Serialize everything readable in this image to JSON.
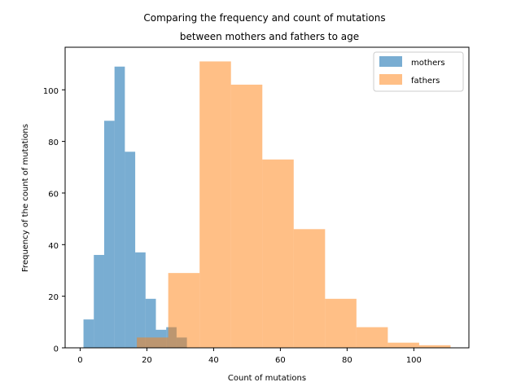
{
  "chart_data": {
    "type": "histogram",
    "title_lines": [
      "Comparing the frequency and count of mutations",
      "between mothers and fathers to age"
    ],
    "xlabel": "Count of mutations",
    "ylabel": "Frequency of the count of mutations",
    "xlim": [
      -4.5,
      116.5
    ],
    "ylim": [
      0,
      116.5
    ],
    "xticks": [
      0,
      20,
      40,
      60,
      80,
      100
    ],
    "yticks": [
      0,
      20,
      40,
      60,
      80,
      100
    ],
    "legend_position": "top-right",
    "grid": false,
    "series": [
      {
        "name": "mothers",
        "color": "#1f77b4",
        "alpha": 0.6,
        "bins": [
          {
            "x0": 1.0,
            "x1": 4.1,
            "count": 11
          },
          {
            "x0": 4.1,
            "x1": 7.2,
            "count": 36
          },
          {
            "x0": 7.2,
            "x1": 10.3,
            "count": 88
          },
          {
            "x0": 10.3,
            "x1": 13.4,
            "count": 109
          },
          {
            "x0": 13.4,
            "x1": 16.5,
            "count": 76
          },
          {
            "x0": 16.5,
            "x1": 19.6,
            "count": 37
          },
          {
            "x0": 19.6,
            "x1": 22.7,
            "count": 19
          },
          {
            "x0": 22.7,
            "x1": 25.8,
            "count": 7
          },
          {
            "x0": 25.8,
            "x1": 28.9,
            "count": 8
          },
          {
            "x0": 28.9,
            "x1": 32.0,
            "count": 4
          }
        ]
      },
      {
        "name": "fathers",
        "color": "#ff7f0e",
        "alpha": 0.5,
        "bins": [
          {
            "x0": 17.0,
            "x1": 26.4,
            "count": 4
          },
          {
            "x0": 26.4,
            "x1": 35.8,
            "count": 29
          },
          {
            "x0": 35.8,
            "x1": 45.2,
            "count": 111
          },
          {
            "x0": 45.2,
            "x1": 54.6,
            "count": 102
          },
          {
            "x0": 54.6,
            "x1": 64.0,
            "count": 73
          },
          {
            "x0": 64.0,
            "x1": 73.4,
            "count": 46
          },
          {
            "x0": 73.4,
            "x1": 82.8,
            "count": 19
          },
          {
            "x0": 82.8,
            "x1": 92.2,
            "count": 8
          },
          {
            "x0": 92.2,
            "x1": 101.6,
            "count": 2
          },
          {
            "x0": 101.6,
            "x1": 111.0,
            "count": 1
          }
        ]
      }
    ]
  }
}
